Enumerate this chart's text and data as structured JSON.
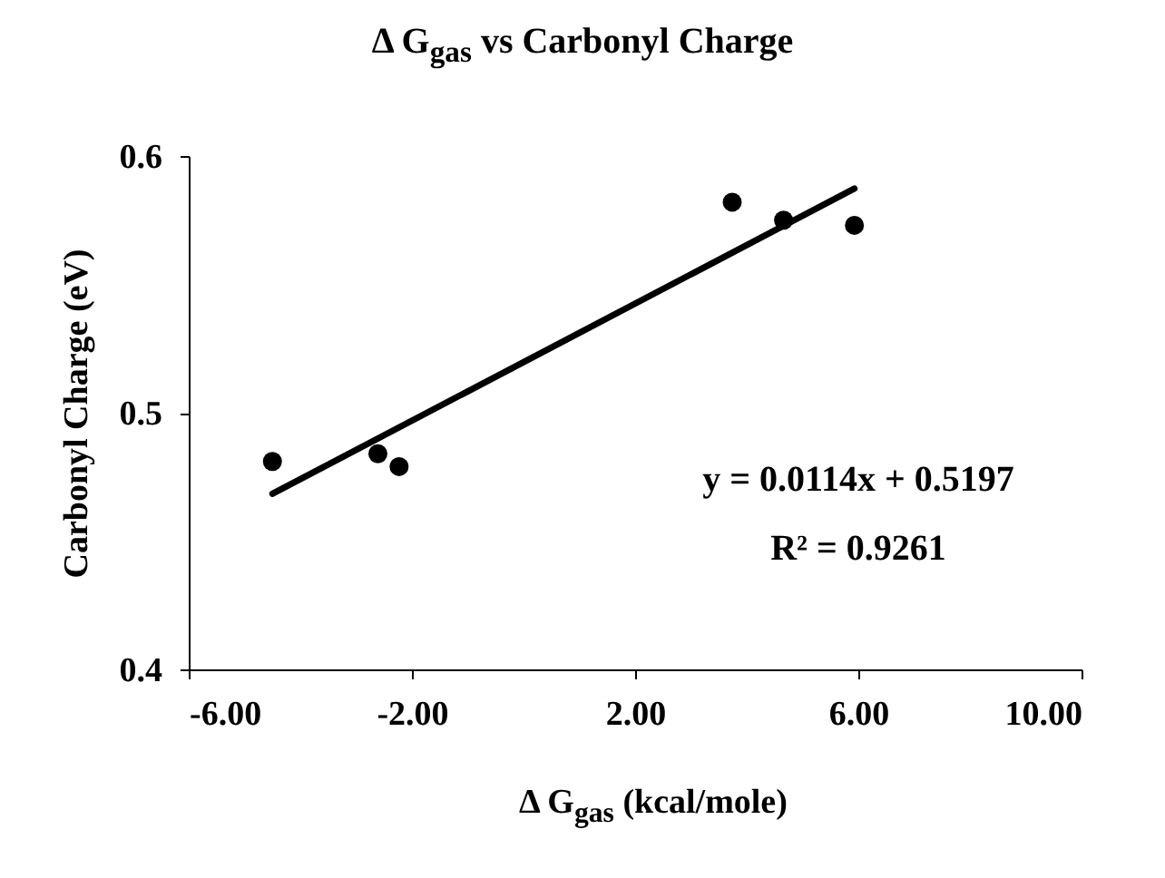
{
  "chart_data": {
    "type": "scatter",
    "title": "Δ G$_{gas}$ vs Carbonyl Charge",
    "xlabel": "Δ G$_{gas}$ (kcal/mole)",
    "ylabel": "Carbonyl Charge (eV)",
    "xlim": [
      -6,
      10
    ],
    "xticks": [
      {
        "value": -6,
        "label": "-6.00"
      },
      {
        "value": -2,
        "label": "-2.00"
      },
      {
        "value": 2,
        "label": "2.00"
      },
      {
        "value": 6,
        "label": "6.00"
      },
      {
        "value": 10,
        "label": "10.00"
      }
    ],
    "ylim": [
      0.4,
      0.6
    ],
    "yticks": [
      {
        "value": 0.4,
        "label": "0.4"
      },
      {
        "value": 0.5,
        "label": "0.5"
      },
      {
        "value": 0.6,
        "label": "0.6"
      }
    ],
    "grid": false,
    "series": [
      {
        "marker": "circle",
        "color": "#000000",
        "x": [
          -4.5,
          -2.61,
          -2.23,
          3.74,
          4.66,
          5.93
        ],
        "values": [
          0.481,
          0.484,
          0.479,
          0.582,
          0.575,
          0.573
        ]
      },
      {
        "type": "line",
        "color": "#000000",
        "x": [
          -4.5,
          5.93
        ],
        "values": [
          0.4684,
          0.5873
        ]
      }
    ],
    "annotations": [
      "y = 0.0114x + 0.5197",
      "R² = 0.9261"
    ]
  }
}
